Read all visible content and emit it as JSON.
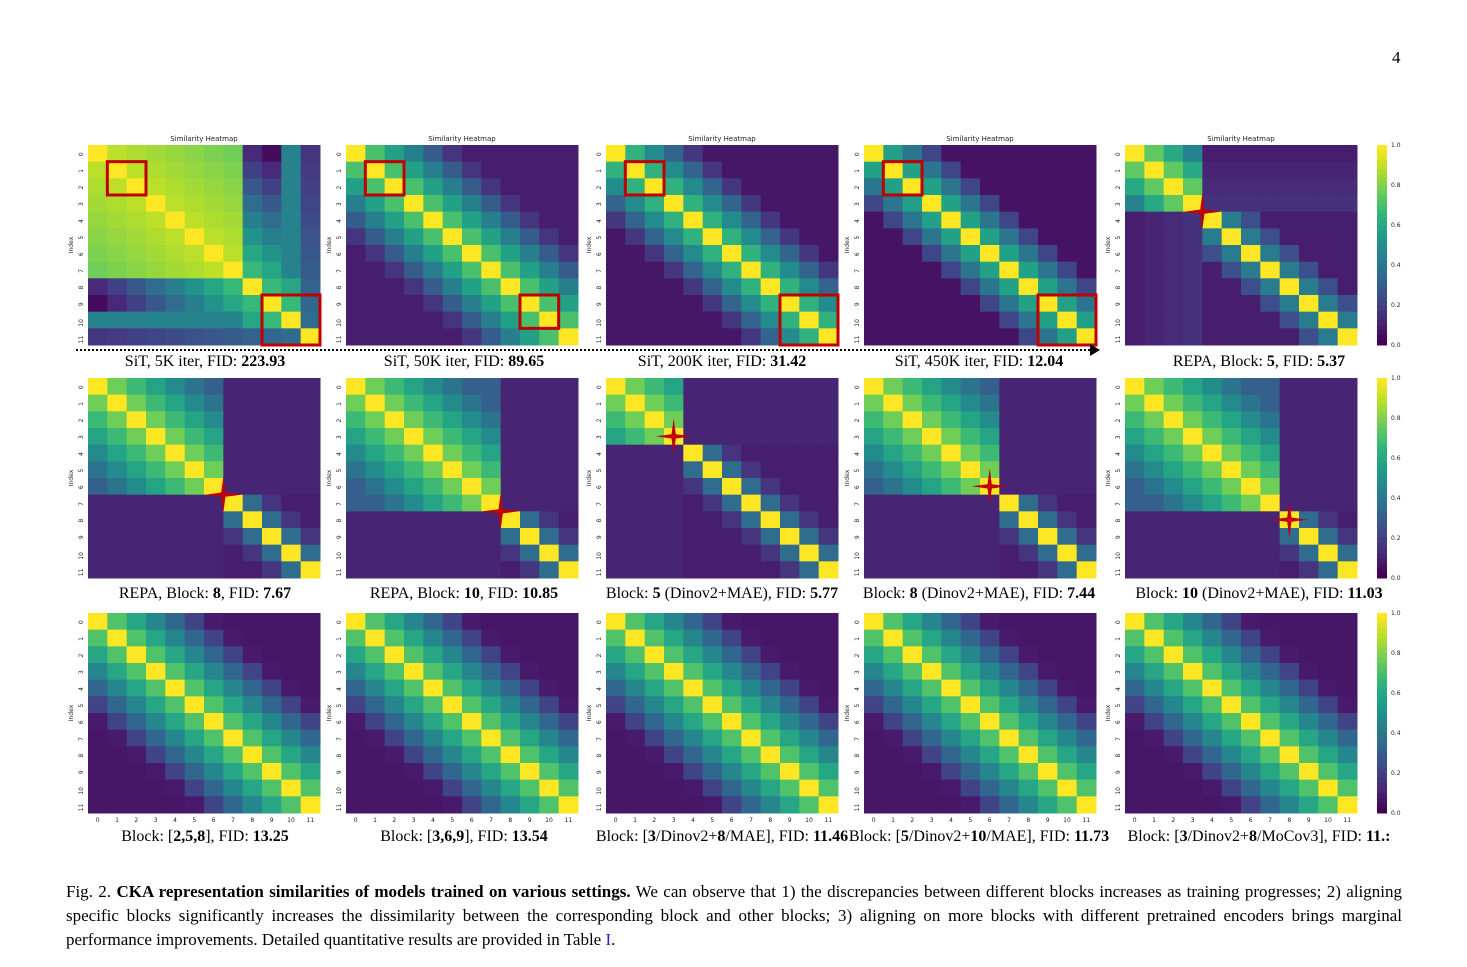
{
  "page_number": "4",
  "heatmap_title": "Similarity Heatmap",
  "ylabel": "Index",
  "colorbar_ticks": [
    "1.0",
    "0.8",
    "0.6",
    "0.4",
    "0.2",
    "0.0"
  ],
  "axis_ticks": [
    "0",
    "1",
    "2",
    "3",
    "4",
    "5",
    "6",
    "7",
    "8",
    "9",
    "10",
    "11"
  ],
  "panels": [
    {
      "caption_pre": "SiT, 5K iter, FID: ",
      "caption_bold": "223.93",
      "caption_post": "",
      "show_title": true,
      "show_xticks": false,
      "show_colorbar": false
    },
    {
      "caption_pre": "SiT, 50K iter, FID: ",
      "caption_bold": "89.65",
      "caption_post": "",
      "show_title": true,
      "show_xticks": false,
      "show_colorbar": false
    },
    {
      "caption_pre": "SiT, 200K iter, FID: ",
      "caption_bold": "31.42",
      "caption_post": "",
      "show_title": true,
      "show_xticks": false,
      "show_colorbar": false
    },
    {
      "caption_pre": "SiT, 450K iter, FID: ",
      "caption_bold": "12.04",
      "caption_post": "",
      "show_title": true,
      "show_xticks": false,
      "show_colorbar": false
    },
    {
      "caption_pre": "REPA, Block: ",
      "caption_bold": "5",
      "caption_mid": ", FID: ",
      "caption_bold2": "5.37",
      "show_title": true,
      "show_xticks": false,
      "show_colorbar": true
    },
    {
      "caption_pre": "REPA, Block: ",
      "caption_bold": "8",
      "caption_mid": ", FID: ",
      "caption_bold2": "7.67",
      "show_title": false,
      "show_xticks": false,
      "show_colorbar": false
    },
    {
      "caption_pre": "REPA, Block: ",
      "caption_bold": "10",
      "caption_mid": ", FID: ",
      "caption_bold2": "10.85",
      "show_title": false,
      "show_xticks": false,
      "show_colorbar": false
    },
    {
      "caption_pre": "Block: ",
      "caption_bold": "5",
      "caption_mid": " (Dinov2+MAE), FID: ",
      "caption_bold2": "5.77",
      "show_title": false,
      "show_xticks": false,
      "show_colorbar": false
    },
    {
      "caption_pre": "Block: ",
      "caption_bold": "8",
      "caption_mid": " (Dinov2+MAE), FID: ",
      "caption_bold2": "7.44",
      "show_title": false,
      "show_xticks": false,
      "show_colorbar": false
    },
    {
      "caption_pre": "Block: ",
      "caption_bold": "10",
      "caption_mid": " (Dinov2+MAE), FID: ",
      "caption_bold2": "11.03",
      "show_title": false,
      "show_xticks": false,
      "show_colorbar": true
    },
    {
      "caption_pre": "Block: [",
      "caption_bold": "2,5,8",
      "caption_mid": "], FID: ",
      "caption_bold2": "13.25",
      "show_title": false,
      "show_xticks": true,
      "show_colorbar": false
    },
    {
      "caption_pre": "Block: [",
      "caption_bold": "3,6,9",
      "caption_mid": "], FID: ",
      "caption_bold2": "13.54",
      "show_title": false,
      "show_xticks": true,
      "show_colorbar": false
    },
    {
      "caption_pre": "Block: [",
      "caption_bold": "3",
      "caption_mid": "/Dinov2+",
      "caption_bold2": "8",
      "caption_tail": "/MAE], FID: ",
      "caption_bold3": "11.46",
      "show_title": false,
      "show_xticks": true,
      "show_colorbar": false
    },
    {
      "caption_pre": "Block: [",
      "caption_bold": "5",
      "caption_mid": "/Dinov2+",
      "caption_bold2": "10",
      "caption_tail": "/MAE], FID: ",
      "caption_bold3": "11.73",
      "show_title": false,
      "show_xticks": true,
      "show_colorbar": false
    },
    {
      "caption_pre": "Block: [",
      "caption_bold": "3",
      "caption_mid": "/Dinov2+",
      "caption_bold2": "8",
      "caption_tail": "/MoCov3], FID: ",
      "caption_bold3": "11.:",
      "show_title": false,
      "show_xticks": true,
      "show_colorbar": true
    }
  ],
  "figure_caption": {
    "label": "Fig. 2.",
    "bold": "CKA representation similarities of models trained on various settings.",
    "body": " We can observe that 1) the discrepancies between different blocks increases as training progresses; 2) aligning specific blocks significantly increases the dissimilarity between the corresponding block and other blocks; 3) aligning on more blocks with different pretrained encoders brings marginal performance improvements. Detailed quantitative results are provided in Table ",
    "link": "I",
    "end": "."
  },
  "colors": {
    "highlight_box": "#c00000",
    "star": "#c00000"
  }
}
